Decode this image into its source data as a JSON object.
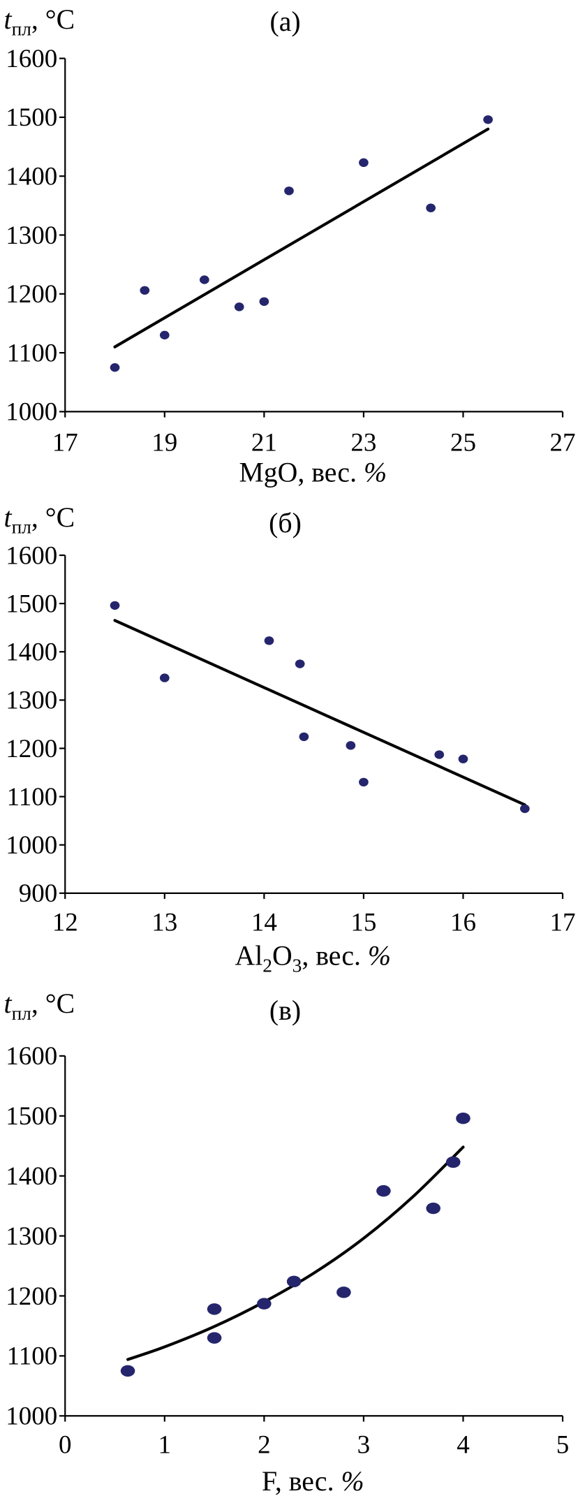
{
  "chart_data": [
    {
      "type": "scatter",
      "panel_label": "(а)",
      "ylabel": {
        "symbol": "t",
        "subscript": "пл",
        "unit": ", °C"
      },
      "xlabel": [
        {
          "text": "MgO, вес. "
        },
        {
          "text": "%",
          "italic": true
        }
      ],
      "xlim": [
        17,
        27
      ],
      "ylim": [
        1000,
        1600
      ],
      "xticks": [
        17,
        19,
        21,
        23,
        25,
        27
      ],
      "yticks": [
        1000,
        1100,
        1200,
        1300,
        1400,
        1500,
        1600
      ],
      "points": {
        "x": [
          18.0,
          18.6,
          19.0,
          19.8,
          20.5,
          21.0,
          21.5,
          23.0,
          24.35,
          25.5
        ],
        "y": [
          1075,
          1206,
          1130,
          1224,
          1178,
          1187,
          1375,
          1423,
          1346,
          1496
        ]
      },
      "trend": {
        "x": [
          18.0,
          25.5
        ],
        "y": [
          1110,
          1480
        ]
      },
      "marker_color": "#25256d",
      "line_color": "#000000"
    },
    {
      "type": "scatter",
      "panel_label": "(б)",
      "ylabel": {
        "symbol": "t",
        "subscript": "пл",
        "unit": ", °C"
      },
      "xlabel": [
        {
          "text": "Al"
        },
        {
          "text": "2",
          "sub": true
        },
        {
          "text": "O"
        },
        {
          "text": "3",
          "sub": true
        },
        {
          "text": ", вес. "
        },
        {
          "text": "%",
          "italic": true
        }
      ],
      "xlim": [
        12,
        17
      ],
      "ylim": [
        900,
        1600
      ],
      "xticks": [
        12,
        13,
        14,
        15,
        16,
        17
      ],
      "yticks": [
        900,
        1000,
        1100,
        1200,
        1300,
        1400,
        1500,
        1600
      ],
      "points": {
        "x": [
          12.5,
          13.0,
          14.05,
          14.36,
          14.4,
          14.87,
          15.0,
          15.76,
          16.0,
          16.62
        ],
        "y": [
          1496,
          1346,
          1423,
          1375,
          1224,
          1206,
          1130,
          1187,
          1178,
          1075
        ]
      },
      "trend": {
        "x": [
          12.5,
          16.62
        ],
        "y": [
          1465,
          1083
        ]
      },
      "marker_color": "#25256d",
      "line_color": "#000000"
    },
    {
      "type": "scatter",
      "panel_label": "(в)",
      "ylabel": {
        "symbol": "t",
        "subscript": "пл",
        "unit": ", °C"
      },
      "xlabel": [
        {
          "text": "F, вес. "
        },
        {
          "text": "%",
          "italic": true
        }
      ],
      "xlim": [
        0,
        5
      ],
      "ylim": [
        1000,
        1600
      ],
      "xticks": [
        0,
        1,
        2,
        3,
        4,
        5
      ],
      "yticks": [
        1000,
        1100,
        1200,
        1300,
        1400,
        1500,
        1600
      ],
      "points": {
        "x": [
          0.63,
          1.5,
          1.5,
          2.0,
          2.3,
          2.8,
          3.2,
          3.7,
          3.9,
          4.0
        ],
        "y": [
          1075,
          1178,
          1130,
          1187,
          1224,
          1206,
          1375,
          1346,
          1423,
          1496
        ]
      },
      "trend": {
        "x": [
          0.63,
          1.0,
          1.5,
          2.0,
          2.5,
          3.0,
          3.5,
          4.0
        ],
        "y": [
          1094,
          1115,
          1149,
          1190,
          1238,
          1296,
          1366,
          1448
        ]
      },
      "marker_color": "#25256d",
      "line_color": "#000000"
    }
  ]
}
